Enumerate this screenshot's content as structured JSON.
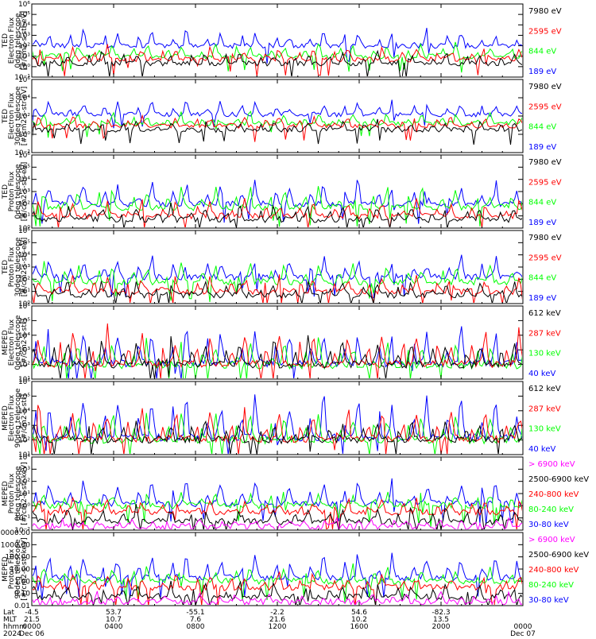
{
  "colors": {
    "black": "#000000",
    "blue": "#0000ff",
    "red": "#ff0000",
    "green": "#00ff00",
    "magenta": "#ff00ff",
    "frame": "#000000",
    "background": "#ffffff"
  },
  "chart_data": [
    {
      "type": "line",
      "ylabel": [
        "TED",
        "Electron Flux",
        "0deg telescope",
        "[#/cm2-s-str-eV]"
      ],
      "yscale": "log",
      "ylim": [
        0.1,
        1000000
      ],
      "yticks": [
        {
          "v": 0.1,
          "t": "10⁻¹"
        },
        {
          "v": 1,
          "t": "10⁰"
        },
        {
          "v": 10,
          "t": "10¹"
        },
        {
          "v": 100,
          "t": "10²"
        },
        {
          "v": 1000,
          "t": "10³"
        },
        {
          "v": 10000,
          "t": "10⁴"
        },
        {
          "v": 100000,
          "t": "10⁵"
        },
        {
          "v": 1000000,
          "t": "10⁶"
        }
      ],
      "series": [
        {
          "name": "7980 eV",
          "color": "#000000",
          "base": 2,
          "peak": 30
        },
        {
          "name": "2595 eV",
          "color": "#ff0000",
          "base": 5,
          "peak": 100
        },
        {
          "name": "844 eV",
          "color": "#00ff00",
          "base": 10,
          "peak": 200
        },
        {
          "name": "189 eV",
          "color": "#0000ff",
          "base": 100,
          "peak": 4000
        }
      ]
    },
    {
      "type": "line",
      "ylabel": [
        "TED",
        "Electron Flux",
        "30deg telescope",
        "[#/cm2-s-str-eV]"
      ],
      "yscale": "log",
      "ylim": [
        0.01,
        1000000
      ],
      "yticks": [
        {
          "v": 0.01,
          "t": "10⁻²"
        },
        {
          "v": 1,
          "t": "10⁰"
        },
        {
          "v": 100,
          "t": "10²"
        },
        {
          "v": 10000,
          "t": "10⁴"
        },
        {
          "v": 1000000,
          "t": "10⁶"
        }
      ],
      "series": [
        {
          "name": "7980 eV",
          "color": "#000000",
          "base": 3,
          "peak": 40
        },
        {
          "name": "2595 eV",
          "color": "#ff0000",
          "base": 8,
          "peak": 150
        },
        {
          "name": "844 eV",
          "color": "#00ff00",
          "base": 15,
          "peak": 300
        },
        {
          "name": "189 eV",
          "color": "#0000ff",
          "base": 150,
          "peak": 5000
        }
      ]
    },
    {
      "type": "line",
      "ylabel": [
        "TED",
        "Proton Flux",
        "0deg telescope",
        "[#/cm2-s-str-eV]"
      ],
      "yscale": "log",
      "ylim": [
        1,
        1000000
      ],
      "yticks": [
        {
          "v": 1,
          "t": "10⁰"
        },
        {
          "v": 10,
          "t": "10¹"
        },
        {
          "v": 100,
          "t": "10²"
        },
        {
          "v": 1000,
          "t": "10³"
        },
        {
          "v": 10000,
          "t": "10⁴"
        },
        {
          "v": 100000,
          "t": "10⁵"
        },
        {
          "v": 1000000,
          "t": "10⁶"
        }
      ],
      "series": [
        {
          "name": "7980 eV",
          "color": "#000000",
          "base": 5,
          "peak": 100
        },
        {
          "name": "2595 eV",
          "color": "#ff0000",
          "base": 10,
          "peak": 300
        },
        {
          "name": "844 eV",
          "color": "#00ff00",
          "base": 50,
          "peak": 3000
        },
        {
          "name": "189 eV",
          "color": "#0000ff",
          "base": 100,
          "peak": 10000
        }
      ]
    },
    {
      "type": "line",
      "ylabel": [
        "TED",
        "Proton Flux",
        "30deg telescope",
        "[#/cm2-s-str-eV]"
      ],
      "yscale": "log",
      "ylim": [
        1,
        1000000
      ],
      "yticks": [
        {
          "v": 1,
          "t": "10⁰"
        },
        {
          "v": 10,
          "t": "10¹"
        },
        {
          "v": 100,
          "t": "10²"
        },
        {
          "v": 1000,
          "t": "10³"
        },
        {
          "v": 10000,
          "t": "10⁴"
        },
        {
          "v": 100000,
          "t": "10⁵"
        },
        {
          "v": 1000000,
          "t": "10⁶"
        }
      ],
      "series": [
        {
          "name": "7980 eV",
          "color": "#000000",
          "base": 5,
          "peak": 100
        },
        {
          "name": "2595 eV",
          "color": "#ff0000",
          "base": 10,
          "peak": 300
        },
        {
          "name": "844 eV",
          "color": "#00ff00",
          "base": 60,
          "peak": 3000
        },
        {
          "name": "189 eV",
          "color": "#0000ff",
          "base": 150,
          "peak": 10000
        }
      ]
    },
    {
      "type": "line",
      "ylabel": [
        "MEPED",
        "Electron Flux",
        "0deg telescope",
        "[#/cm2-s-str]"
      ],
      "yscale": "log",
      "ylim": [
        10,
        1000000
      ],
      "yticks": [
        {
          "v": 10,
          "t": "10¹"
        },
        {
          "v": 100,
          "t": "10²"
        },
        {
          "v": 1000,
          "t": "10³"
        },
        {
          "v": 10000,
          "t": "10⁴"
        },
        {
          "v": 100000,
          "t": "10⁵"
        },
        {
          "v": 1000000,
          "t": "10⁶"
        }
      ],
      "series": [
        {
          "name": "612 keV",
          "color": "#000000",
          "base": 100,
          "peak": 10000
        },
        {
          "name": "287 keV",
          "color": "#ff0000",
          "base": 110,
          "peak": 50000
        },
        {
          "name": "130 keV",
          "color": "#00ff00",
          "base": 90,
          "peak": 5000
        },
        {
          "name": "40 keV",
          "color": "#0000ff",
          "base": 120,
          "peak": 100000
        }
      ]
    },
    {
      "type": "line",
      "ylabel": [
        "MEPED",
        "Electron Flux",
        "90deg telescope",
        "[#/cm2-s-str]"
      ],
      "yscale": "log",
      "ylim": [
        10,
        1000000
      ],
      "yticks": [
        {
          "v": 10,
          "t": "10¹"
        },
        {
          "v": 100,
          "t": "10²"
        },
        {
          "v": 1000,
          "t": "10³"
        },
        {
          "v": 10000,
          "t": "10⁴"
        },
        {
          "v": 100000,
          "t": "10⁵"
        },
        {
          "v": 1000000,
          "t": "10⁶"
        }
      ],
      "series": [
        {
          "name": "612 keV",
          "color": "#000000",
          "base": 100,
          "peak": 3000
        },
        {
          "name": "287 keV",
          "color": "#ff0000",
          "base": 120,
          "peak": 30000
        },
        {
          "name": "130 keV",
          "color": "#00ff00",
          "base": 100,
          "peak": 10000
        },
        {
          "name": "40 keV",
          "color": "#0000ff",
          "base": 150,
          "peak": 300000
        }
      ]
    },
    {
      "type": "line",
      "ylabel": [
        "MEPED",
        "Proton Flux",
        "0deg telescope",
        "[#/cm2-s-str-keV]"
      ],
      "yscale": "log",
      "ylim": [
        0.01,
        10000
      ],
      "yticks": [
        {
          "v": 0.01,
          "t": "10⁻²"
        },
        {
          "v": 0.1,
          "t": "10⁻¹"
        },
        {
          "v": 1,
          "t": "10⁰"
        },
        {
          "v": 10,
          "t": "10¹"
        },
        {
          "v": 100,
          "t": "10²"
        },
        {
          "v": 1000,
          "t": "10³"
        },
        {
          "v": 10000,
          "t": "10⁴"
        }
      ],
      "series": [
        {
          "name": "> 6900 keV",
          "color": "#ff00ff",
          "base": 0.02,
          "peak": 0.1
        },
        {
          "name": "2500-6900 keV",
          "color": "#000000",
          "base": 0.05,
          "peak": 1
        },
        {
          "name": "240-800 keV",
          "color": "#ff0000",
          "base": 0.3,
          "peak": 5
        },
        {
          "name": "80-240 keV",
          "color": "#00ff00",
          "base": 1,
          "peak": 20
        },
        {
          "name": "30-80 keV",
          "color": "#0000ff",
          "base": 1.5,
          "peak": 300
        }
      ]
    },
    {
      "type": "line",
      "ylabel": [
        "MEPED",
        "Proton Flux",
        "90deg telescope",
        "[#/cm2-s-str-keV]"
      ],
      "yscale": "log",
      "ylim": [
        0.01,
        10000
      ],
      "yticks": [
        {
          "v": 0.01,
          "t": "0.01"
        },
        {
          "v": 0.1,
          "t": "0.10"
        },
        {
          "v": 1,
          "t": "1.00"
        },
        {
          "v": 10,
          "t": "10.00"
        },
        {
          "v": 100,
          "t": "100.00"
        },
        {
          "v": 1000,
          "t": "1000.00"
        },
        {
          "v": 10000,
          "t": "10000.00"
        }
      ],
      "series": [
        {
          "name": "> 6900 keV",
          "color": "#ff00ff",
          "base": 0.02,
          "peak": 0.1
        },
        {
          "name": "2500-6900 keV",
          "color": "#000000",
          "base": 0.05,
          "peak": 1
        },
        {
          "name": "240-800 keV",
          "color": "#ff0000",
          "base": 0.3,
          "peak": 5
        },
        {
          "name": "80-240 keV",
          "color": "#00ff00",
          "base": 1,
          "peak": 20
        },
        {
          "name": "30-80 keV",
          "color": "#0000ff",
          "base": 2,
          "peak": 300
        }
      ]
    }
  ],
  "xaxis": {
    "row_labels": [
      "Lat",
      "MLT",
      "hhmm",
      "2024"
    ],
    "ticks": [
      {
        "lat": "-4.5",
        "mlt": "21.5",
        "hhmm": "0000",
        "date": "Dec 06"
      },
      {
        "lat": "53.7",
        "mlt": "10.7",
        "hhmm": "0400",
        "date": ""
      },
      {
        "lat": "-55.1",
        "mlt": "7.6",
        "hhmm": "0800",
        "date": ""
      },
      {
        "lat": "-2.2",
        "mlt": "21.6",
        "hhmm": "1200",
        "date": ""
      },
      {
        "lat": "54.6",
        "mlt": "10.2",
        "hhmm": "1600",
        "date": ""
      },
      {
        "lat": "-82.3",
        "mlt": "13.5",
        "hhmm": "2000",
        "date": ""
      },
      {
        "lat": "",
        "mlt": "",
        "hhmm": "0000",
        "date": "Dec 07"
      }
    ]
  }
}
